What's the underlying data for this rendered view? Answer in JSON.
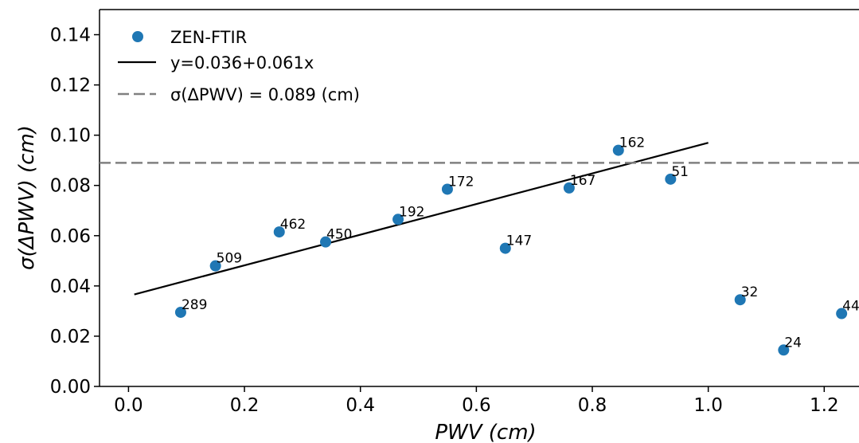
{
  "chart_data": {
    "type": "scatter",
    "xlabel": "PWV (cm)",
    "ylabel": "σ(ΔPWV) (cm)",
    "xlim": [
      -0.05,
      1.26
    ],
    "ylim": [
      0.0,
      0.15
    ],
    "x_ticks": [
      "0.0",
      "0.2",
      "0.4",
      "0.6",
      "0.8",
      "1.0",
      "1.2"
    ],
    "y_ticks": [
      "0.00",
      "0.02",
      "0.04",
      "0.06",
      "0.08",
      "0.10",
      "0.12",
      "0.14"
    ],
    "grid": false,
    "legend_position": "top-left",
    "series": [
      {
        "name": "ZEN-FTIR",
        "kind": "scatter",
        "color": "#1f77b4",
        "points": [
          {
            "x": 0.09,
            "y": 0.0295,
            "label": "289"
          },
          {
            "x": 0.15,
            "y": 0.048,
            "label": "509"
          },
          {
            "x": 0.26,
            "y": 0.0615,
            "label": "462"
          },
          {
            "x": 0.34,
            "y": 0.0575,
            "label": "450"
          },
          {
            "x": 0.465,
            "y": 0.0665,
            "label": "192"
          },
          {
            "x": 0.55,
            "y": 0.0785,
            "label": "172"
          },
          {
            "x": 0.65,
            "y": 0.055,
            "label": "147"
          },
          {
            "x": 0.76,
            "y": 0.079,
            "label": "167"
          },
          {
            "x": 0.845,
            "y": 0.094,
            "label": "162"
          },
          {
            "x": 0.935,
            "y": 0.0825,
            "label": "51"
          },
          {
            "x": 1.055,
            "y": 0.0345,
            "label": "32"
          },
          {
            "x": 1.13,
            "y": 0.0145,
            "label": "24"
          },
          {
            "x": 1.23,
            "y": 0.029,
            "label": "44"
          }
        ]
      },
      {
        "name": "y=0.036+0.061x",
        "kind": "line",
        "style": "solid",
        "color": "#000000",
        "x": [
          0.01,
          1.0
        ],
        "y": [
          0.0366,
          0.097
        ]
      },
      {
        "name": "σ(ΔPWV) = 0.089 (cm)",
        "kind": "hline",
        "style": "dashed",
        "color": "#808080",
        "y": 0.089
      }
    ]
  }
}
